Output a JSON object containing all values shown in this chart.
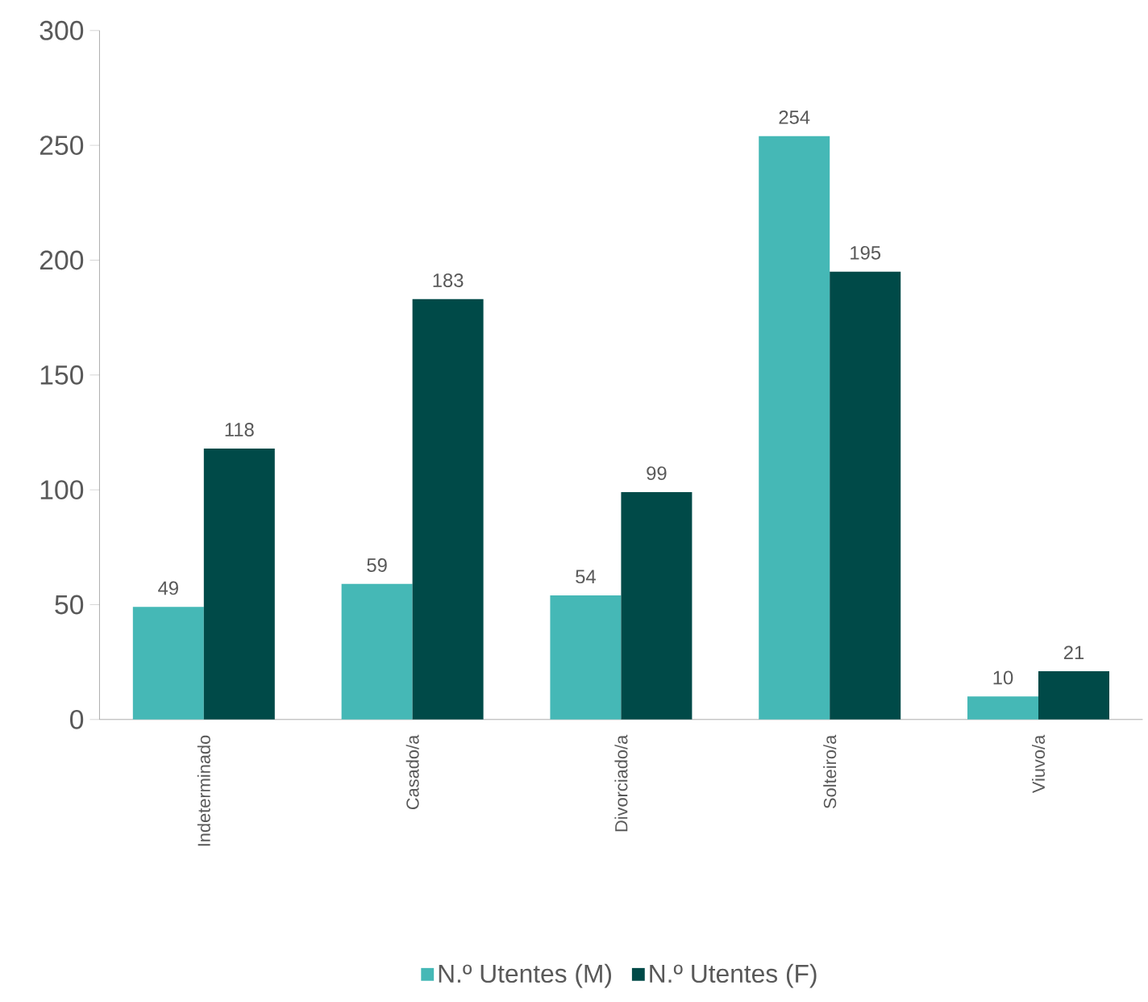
{
  "chart_data": {
    "type": "bar",
    "categories": [
      "Indeterminado",
      "Casado/a",
      "Divorciado/a",
      "Solteiro/a",
      "Viuvo/a"
    ],
    "series": [
      {
        "name": "N.º Utentes (M)",
        "color": "#45b8b6",
        "values": [
          49,
          59,
          54,
          254,
          10
        ]
      },
      {
        "name": "N.º Utentes (F)",
        "color": "#004a48",
        "values": [
          118,
          183,
          99,
          195,
          21
        ]
      }
    ],
    "ylim": [
      0,
      300
    ],
    "yticks": [
      0,
      50,
      100,
      150,
      200,
      250,
      300
    ],
    "data_labels": true,
    "legend": "bottom"
  }
}
